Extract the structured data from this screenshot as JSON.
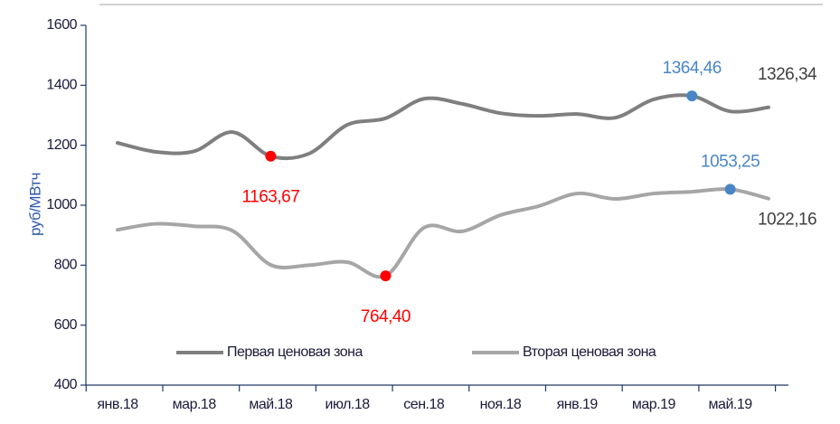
{
  "chart_data": {
    "type": "line",
    "y_label": "руб/МВтч",
    "categories": [
      "янв.18",
      null,
      "мар.18",
      null,
      "май.18",
      null,
      "июл.18",
      null,
      "сен.18",
      null,
      "ноя.18",
      null,
      "янв.19",
      null,
      "мар.19",
      null,
      "май.19",
      null
    ],
    "series": [
      {
        "name": "Первая ценовая зона",
        "color": "#7f7f7f",
        "values": [
          1208,
          1178,
          1180,
          1244,
          1163.67,
          1172,
          1268,
          1290,
          1355,
          1338,
          1307,
          1298,
          1304,
          1292,
          1353,
          1364.46,
          1313,
          1326.34
        ],
        "value_labels": [
          null,
          null,
          null,
          null,
          "1163,67",
          null,
          null,
          null,
          null,
          null,
          null,
          null,
          null,
          null,
          null,
          "1364,46",
          null,
          "1326,34"
        ]
      },
      {
        "name": "Вторая ценовая зона",
        "color": "#a6a6a6",
        "values": [
          918,
          938,
          930,
          915,
          801,
          800,
          810,
          764.4,
          925,
          913,
          967,
          997,
          1039,
          1021,
          1039,
          1045,
          1053.25,
          1022.16
        ],
        "value_labels": [
          null,
          null,
          null,
          null,
          null,
          null,
          null,
          "764,40",
          null,
          null,
          null,
          null,
          null,
          null,
          null,
          null,
          "1053,25",
          "1022,16"
        ]
      }
    ],
    "markers": {
      "min": "#ff0000",
      "max": "#4a86c5"
    },
    "ylim": [
      400,
      1600
    ],
    "yticks": [
      400,
      600,
      800,
      1000,
      1200,
      1400,
      1600
    ],
    "legend": "bottom"
  }
}
